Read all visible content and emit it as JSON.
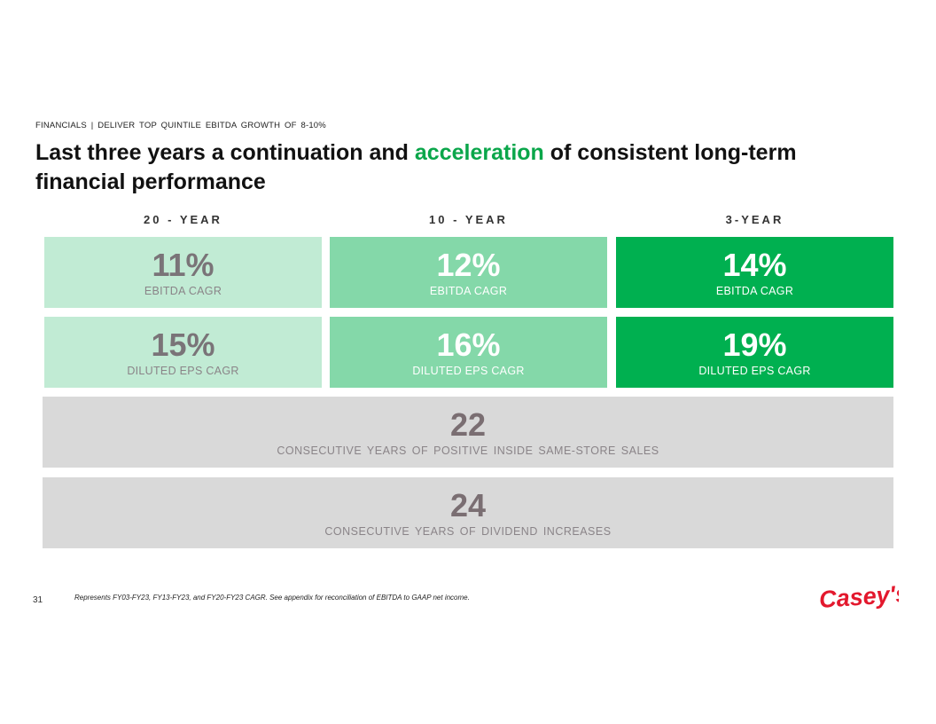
{
  "eyebrow": "FINANCIALS | DELIVER TOP QUINTILE EBITDA GROWTH OF 8-10%",
  "title": {
    "part1": "Last three years a continuation and ",
    "accent": "acceleration",
    "part2": " of consistent long-term financial performance"
  },
  "columns": [
    "20 - YEAR",
    "10 - YEAR",
    "3-YEAR"
  ],
  "ebitda_row": [
    {
      "value": "11%",
      "label": "EBITDA CAGR"
    },
    {
      "value": "12%",
      "label": "EBITDA CAGR"
    },
    {
      "value": "14%",
      "label": "EBITDA CAGR"
    }
  ],
  "eps_row": [
    {
      "value": "15%",
      "label": "DILUTED EPS CAGR"
    },
    {
      "value": "16%",
      "label": "DILUTED EPS CAGR"
    },
    {
      "value": "19%",
      "label": "DILUTED EPS CAGR"
    }
  ],
  "bands": [
    {
      "value": "22",
      "label": "CONSECUTIVE YEARS OF POSITIVE INSIDE SAME-STORE SALES"
    },
    {
      "value": "24",
      "label": "CONSECUTIVE YEARS OF DIVIDEND INCREASES"
    }
  ],
  "footer": {
    "page_number": "31",
    "footnote": "Represents FY03-FY23, FY13-FY23, and FY20-FY23 CAGR. See appendix for reconciliation of EBITDA to GAAP net income.",
    "logo_text": "Casey's"
  },
  "colors": {
    "accent_green": "#0aa64a",
    "tile_light": "#c1ebd4",
    "tile_mid": "#84d8a9",
    "tile_dark": "#00b050",
    "band_gray": "#d9d9d9",
    "logo_red": "#e3182d"
  }
}
